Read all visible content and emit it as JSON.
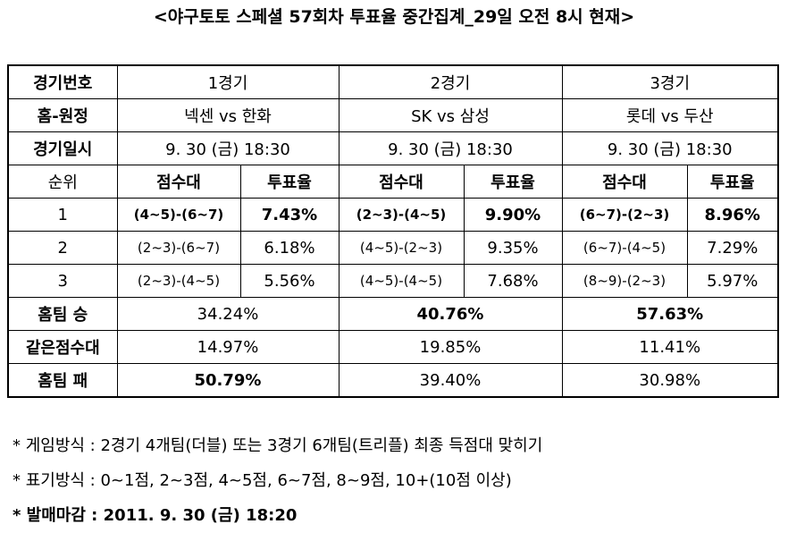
{
  "title": "<야구토토 스페셜 57회차 투표율 중간집계_29일 오전 8시 현재>",
  "table": {
    "rows": [
      [
        "경기번호",
        "1경기",
        "2경기",
        "3경기"
      ],
      [
        "홈-원정",
        "넥센 vs 한화",
        "SK vs 삼성",
        "롯데 vs 두산"
      ],
      [
        "경기일시",
        "9. 30 (금) 18:30",
        "9. 30 (금) 18:30",
        "9. 30 (금) 18:30"
      ],
      [
        "순위",
        "점수대",
        "투표율",
        "점수대",
        "투표율",
        "점수대",
        "투표율"
      ],
      [
        "1",
        "(4~5)-(6~7)",
        "7.43%",
        "(2~3)-(4~5)",
        "9.90%",
        "(6~7)-(2~3)",
        "8.96%"
      ],
      [
        "2",
        "(2~3)-(6~7)",
        "6.18%",
        "(4~5)-(2~3)",
        "9.35%",
        "(6~7)-(4~5)",
        "7.29%"
      ],
      [
        "3",
        "(2~3)-(4~5)",
        "5.56%",
        "(4~5)-(4~5)",
        "7.68%",
        "(8~9)-(2~3)",
        "5.97%"
      ],
      [
        "홈팀 승",
        "34.24%",
        "40.76%",
        "57.63%"
      ],
      [
        "같은점수대",
        "14.97%",
        "19.85%",
        "11.41%"
      ],
      [
        "홈팀 패",
        "50.79%",
        "39.40%",
        "30.98%"
      ]
    ]
  },
  "notes": [
    "* 게임방식 : 2경기 4개팀(더블) 또는 3경기 6개팀(트리플) 최종 득점대 맞히기",
    "* 표기방식 : 0~1점, 2~3점, 4~5점, 6~7점, 8~9점, 10+(10점 이상)",
    "* 발매마감 : 2011. 9. 30 (금) 18:20"
  ]
}
